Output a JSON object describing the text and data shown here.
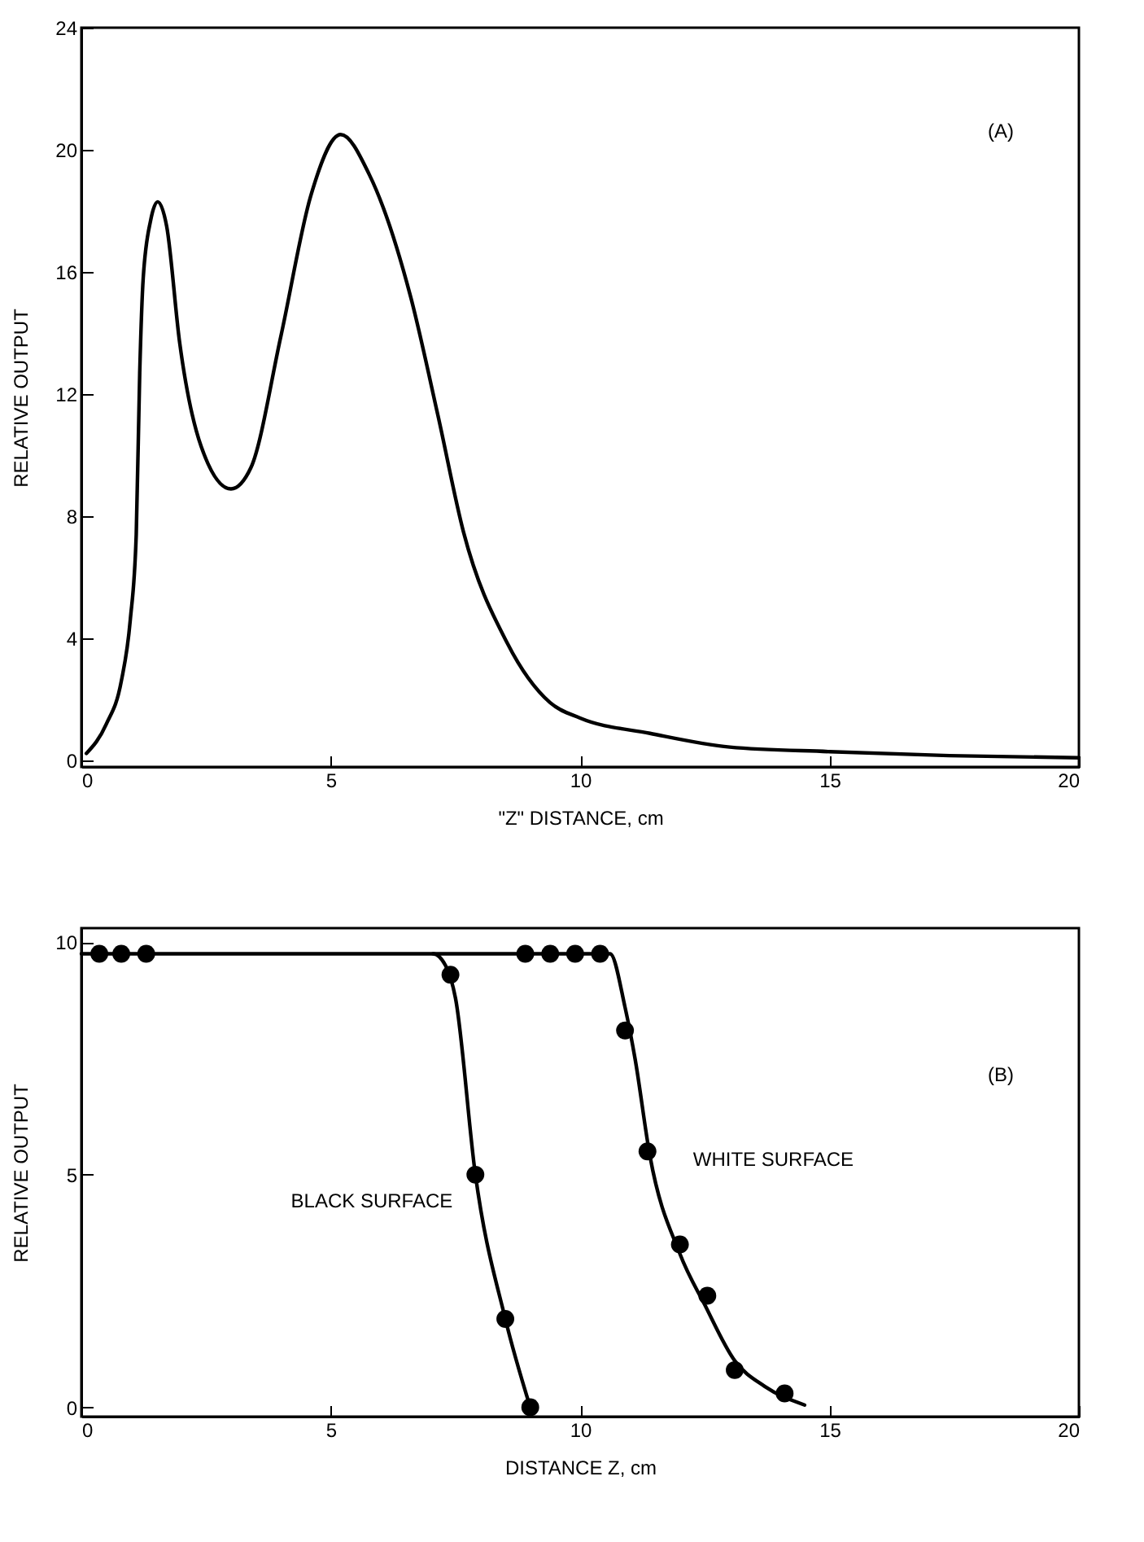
{
  "chart_data": [
    {
      "type": "line",
      "xlabel": "\"Z\" DISTANCE, cm",
      "ylabel": "RELATIVE OUTPUT",
      "annotations": [
        "(A)"
      ],
      "color": "#000000",
      "x": [
        0.1,
        0.5,
        0.8,
        0.98,
        1.1,
        1.17,
        1.24,
        1.39,
        1.53,
        1.71,
        1.97,
        2.4,
        3.0,
        3.4,
        4.0,
        4.6,
        5.2,
        5.77,
        6.6,
        7.15,
        7.66,
        8.54,
        9.4,
        10.0,
        11.4,
        13.0,
        15.0,
        17.4,
        20.0
      ],
      "values": [
        0.24,
        1.2,
        2.6,
        4.6,
        7.4,
        12.7,
        15.8,
        17.7,
        18.3,
        17.5,
        13.7,
        10.3,
        8.9,
        9.6,
        13.9,
        18.5,
        20.5,
        19.2,
        15.2,
        11.3,
        7.5,
        3.85,
        1.9,
        1.4,
        0.9,
        0.45,
        0.3,
        0.17,
        0.1
      ],
      "xlim": [
        0,
        20
      ],
      "ylim": [
        -0.2,
        24
      ],
      "xticks": [
        0,
        5,
        10,
        15,
        20
      ],
      "yticks": [
        0,
        4,
        8,
        12,
        16,
        20,
        24
      ]
    },
    {
      "type": "scatter",
      "xlabel": "DISTANCE Z, cm",
      "ylabel": "RELATIVE OUTPUT",
      "annotations": [
        "(B)"
      ],
      "xlim": [
        0,
        20
      ],
      "ylim": [
        -0.2,
        10.3
      ],
      "xticks": [
        0,
        5,
        10,
        15,
        20
      ],
      "yticks": [
        0,
        5,
        10
      ],
      "series": [
        {
          "name": "BLACK SURFACE",
          "color": "#000000",
          "marker": "circle",
          "x": [
            0.36,
            0.8,
            1.3,
            7.4,
            7.9,
            8.5,
            9.0
          ],
          "values": [
            9.75,
            9.75,
            9.75,
            9.3,
            5.0,
            1.9,
            0
          ]
        },
        {
          "name": "WHITE SURFACE",
          "color": "#000000",
          "marker": "circle",
          "x": [
            8.9,
            9.4,
            9.9,
            10.4,
            10.9,
            11.35,
            12.0,
            12.55,
            13.1,
            14.1
          ],
          "values": [
            9.75,
            9.75,
            9.75,
            9.75,
            8.1,
            5.5,
            3.5,
            2.4,
            0.8,
            0.3
          ]
        },
        {
          "type": "line",
          "color": "#000000",
          "x": [
            0.0,
            7.05,
            7.3,
            7.5,
            7.9,
            8.5,
            9.0
          ],
          "values": [
            9.75,
            9.75,
            9.5,
            8.8,
            5.0,
            1.9,
            0
          ]
        },
        {
          "type": "line",
          "color": "#000000",
          "x": [
            7.05,
            10.6,
            10.9,
            11.1,
            11.4,
            12.0,
            12.5,
            13.1,
            13.7,
            14.5
          ],
          "values": [
            9.75,
            9.75,
            8.6,
            7.5,
            5.4,
            3.3,
            2.2,
            1.0,
            0.45,
            0.05
          ]
        }
      ]
    }
  ]
}
